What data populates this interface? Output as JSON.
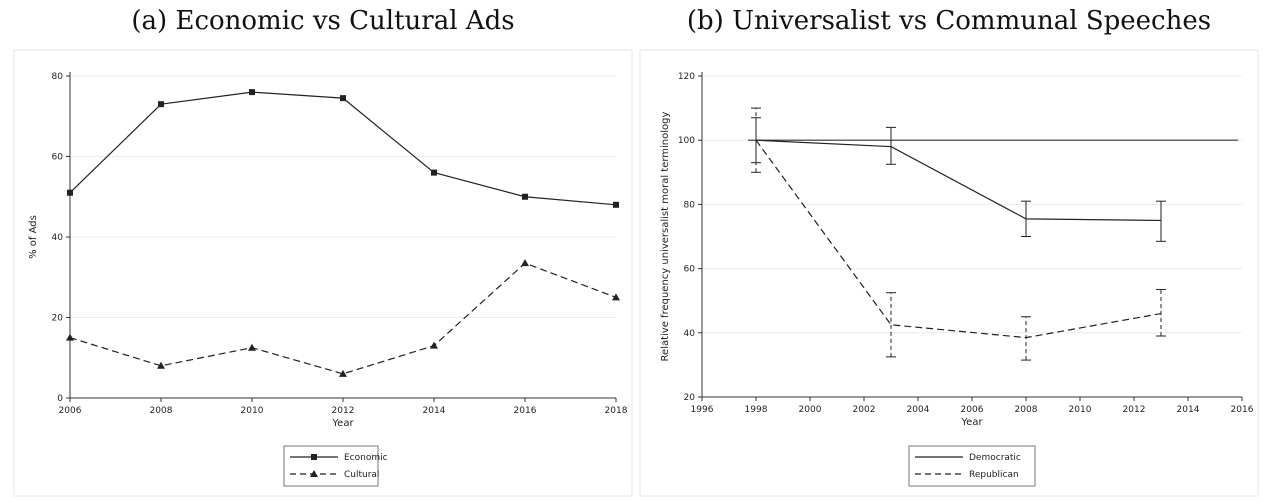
{
  "panels": [
    {
      "title": "(a) Economic vs Cultural Ads"
    },
    {
      "title": "(b) Universalist vs Communal Speeches"
    }
  ],
  "chart_data": [
    {
      "type": "line",
      "title": "(a) Economic vs Cultural Ads",
      "xlabel": "Year",
      "ylabel": "% of Ads",
      "xlim": [
        2006,
        2018
      ],
      "ylim": [
        0,
        80
      ],
      "xticks": [
        "2006",
        "2008",
        "2010",
        "2012",
        "2014",
        "2016",
        "2018"
      ],
      "yticks": [
        "0",
        "20",
        "40",
        "60",
        "80"
      ],
      "grid": true,
      "legend_position": "bottom",
      "x": [
        2006,
        2008,
        2010,
        2012,
        2014,
        2016,
        2018
      ],
      "series": [
        {
          "name": "Economic",
          "values": [
            51,
            73,
            76,
            74.5,
            56,
            50,
            48
          ],
          "style": "solid",
          "marker": "square",
          "color": "#222222"
        },
        {
          "name": "Cultural",
          "values": [
            15,
            8,
            12.5,
            6,
            13,
            33.5,
            25
          ],
          "style": "dashed",
          "marker": "triangle",
          "color": "#222222"
        }
      ]
    },
    {
      "type": "line",
      "title": "(b) Universalist vs Communal Speeches",
      "xlabel": "Year",
      "ylabel": "Relative frequency universalist moral terminology",
      "xlim": [
        1996,
        2016
      ],
      "ylim": [
        20,
        120
      ],
      "xticks": [
        "1996",
        "1998",
        "2000",
        "2002",
        "2004",
        "2006",
        "2008",
        "2010",
        "2012",
        "2014",
        "2016"
      ],
      "yticks": [
        "20",
        "40",
        "60",
        "80",
        "100",
        "120"
      ],
      "grid": true,
      "legend_position": "bottom",
      "reference_line": {
        "y": 100
      },
      "x": [
        1998,
        2003,
        2008,
        2013
      ],
      "series": [
        {
          "name": "Democratic",
          "values": [
            100,
            98,
            75.5,
            75
          ],
          "lower": [
            93,
            92.5,
            70,
            68.5
          ],
          "upper": [
            107,
            104,
            81,
            81
          ],
          "style": "solid",
          "color": "#222222"
        },
        {
          "name": "Republican",
          "values": [
            100,
            42.5,
            38.5,
            46
          ],
          "lower": [
            90,
            32.5,
            31.5,
            39
          ],
          "upper": [
            110,
            52.5,
            45,
            53.5
          ],
          "style": "dashed",
          "color": "#222222"
        }
      ]
    }
  ]
}
